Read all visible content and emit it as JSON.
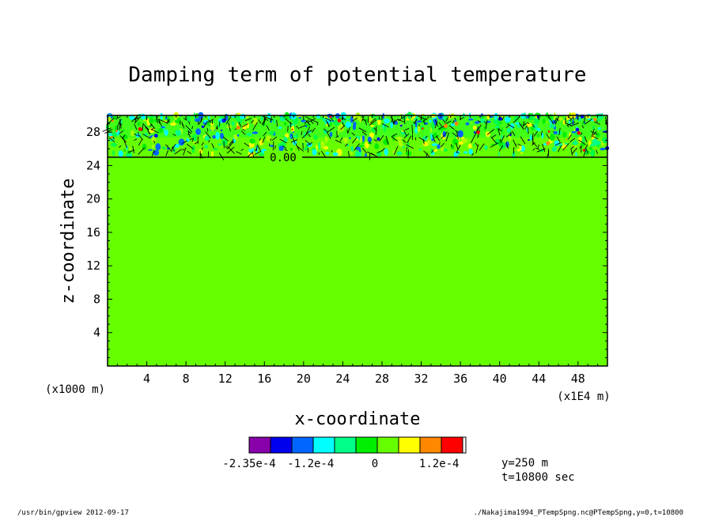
{
  "chart_data": {
    "type": "heatmap",
    "title": "Damping term of potential temperature",
    "xlabel": "x-coordinate",
    "ylabel": "z-coordinate",
    "xlim": [
      0,
      51
    ],
    "ylim": [
      0,
      30
    ],
    "x_ticks": [
      4,
      8,
      12,
      16,
      20,
      24,
      28,
      32,
      36,
      40,
      44,
      48
    ],
    "x_tick_labels": [
      "4",
      "8",
      "12",
      "16",
      "20",
      "24",
      "28",
      "32",
      "36",
      "40",
      "44",
      "48"
    ],
    "y_ticks": [
      4,
      8,
      12,
      16,
      20,
      24,
      28
    ],
    "y_tick_labels": [
      "4",
      "8",
      "12",
      "16",
      "20",
      "24",
      "28"
    ],
    "x_units": "(x1E4 m)",
    "y_units": "(x1000 m)",
    "background_value_color": "#66ff00",
    "damping_layer_bottom": 25,
    "contour": {
      "level": 0.0,
      "label": "0.00",
      "z": 25
    },
    "colorbar": {
      "colors": [
        "#8800aa",
        "#0000ee",
        "#0066ff",
        "#00ffff",
        "#00ff88",
        "#00ee00",
        "#66ff00",
        "#ffff00",
        "#ff8800",
        "#ff0000"
      ],
      "min": -0.000235,
      "max": 0.00017,
      "tick_labels": [
        {
          "label": "-2.35e-4",
          "value": -0.000235
        },
        {
          "label": "-1.2e-4",
          "value": -0.00012
        },
        {
          "label": "0",
          "value": 0
        },
        {
          "label": "1.2e-4",
          "value": 0.00012
        }
      ]
    },
    "annotations": {
      "y_info": "y=250 m",
      "t_info": "t=10800 sec"
    }
  },
  "footer": {
    "left": "/usr/bin/gpview   2012-09-17",
    "right": "./Nakajima1994_PTempSpng.nc@PTempSpng,y=0,t=10800"
  }
}
